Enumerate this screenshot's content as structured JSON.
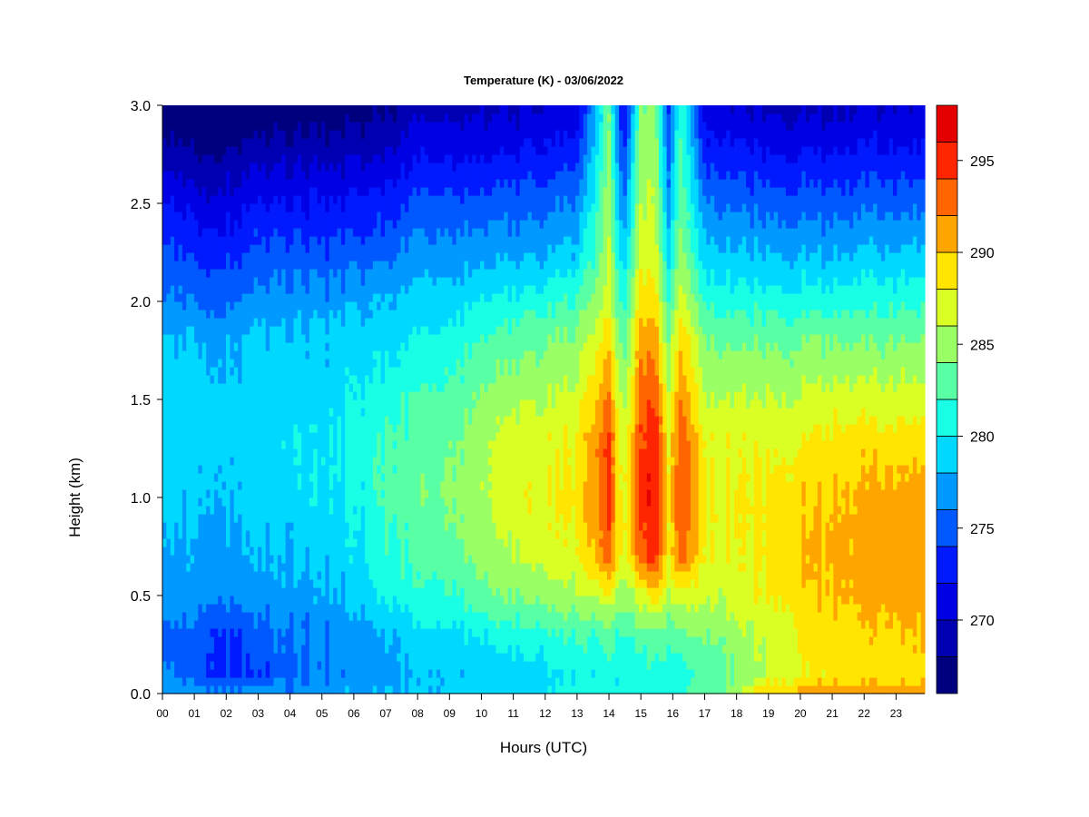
{
  "chart_data": {
    "type": "heatmap",
    "title": "Temperature (K) - 03/06/2022",
    "xlabel": "Hours (UTC)",
    "ylabel": "Height (km)",
    "x_ticks": [
      "00",
      "01",
      "02",
      "03",
      "04",
      "05",
      "06",
      "07",
      "08",
      "09",
      "10",
      "11",
      "12",
      "13",
      "14",
      "15",
      "16",
      "17",
      "18",
      "19",
      "20",
      "21",
      "22",
      "23"
    ],
    "y_ticks": [
      "0.0",
      "0.5",
      "1.0",
      "1.5",
      "2.0",
      "2.5",
      "3.0"
    ],
    "xlim": [
      0,
      23.9
    ],
    "ylim": [
      0,
      3.0
    ],
    "colorbar": {
      "ticks": [
        "270",
        "275",
        "280",
        "285",
        "290",
        "295"
      ],
      "range": [
        266,
        298
      ],
      "levels": [
        266,
        268,
        270,
        272,
        274,
        276,
        278,
        280,
        282,
        284,
        286,
        288,
        290,
        292,
        294,
        296,
        298
      ],
      "colors": [
        "#00007f",
        "#0000b2",
        "#0000e5",
        "#0019ff",
        "#0059ff",
        "#0099ff",
        "#00d9ff",
        "#19ffe5",
        "#59ffa5",
        "#99ff65",
        "#d9ff25",
        "#ffe500",
        "#ffa500",
        "#ff6500",
        "#ff2500",
        "#e50000",
        "#7f0000"
      ]
    },
    "height_km": [
      0.0,
      0.1,
      0.3,
      0.5,
      0.7,
      1.0,
      1.3,
      1.5,
      1.8,
      2.0,
      2.2,
      2.5,
      2.8,
      3.0
    ],
    "profiles": [
      {
        "hour": 0.0,
        "temperature_k": [
          277,
          276,
          275,
          277,
          277.5,
          278,
          278.5,
          279,
          278,
          276,
          275,
          272,
          268,
          266
        ]
      },
      {
        "hour": 1.0,
        "temperature_k": [
          277,
          275,
          275,
          277,
          277.5,
          278.5,
          279,
          279,
          278,
          276,
          274,
          271,
          267.5,
          266
        ]
      },
      {
        "hour": 2.0,
        "temperature_k": [
          277,
          274,
          274,
          277,
          277.5,
          278.5,
          279,
          279,
          278,
          276,
          274,
          271,
          268,
          266
        ]
      },
      {
        "hour": 3.0,
        "temperature_k": [
          277,
          274,
          275,
          277,
          278,
          279,
          279,
          279,
          278.5,
          276.5,
          275,
          272,
          268.5,
          266.5
        ]
      },
      {
        "hour": 4.0,
        "temperature_k": [
          277,
          275,
          276,
          277,
          278,
          279,
          279.5,
          279,
          278.5,
          277,
          275,
          272,
          268.5,
          266.5
        ]
      },
      {
        "hour": 5.0,
        "temperature_k": [
          277,
          276,
          276,
          277.5,
          278.5,
          279.5,
          279.5,
          279,
          278.5,
          277,
          275,
          272,
          268.5,
          266.5
        ]
      },
      {
        "hour": 6.0,
        "temperature_k": [
          277.5,
          277,
          277,
          278.5,
          279.5,
          280,
          280.5,
          280,
          279,
          277.5,
          275.5,
          272.5,
          269,
          267
        ]
      },
      {
        "hour": 7.0,
        "temperature_k": [
          278,
          277.5,
          278,
          280.5,
          281.5,
          282.5,
          282,
          281,
          279.5,
          278,
          276,
          273,
          269.5,
          267.5
        ]
      },
      {
        "hour": 8.0,
        "temperature_k": [
          278,
          278,
          279,
          281,
          282.5,
          283.5,
          283,
          282,
          280,
          278.5,
          277,
          274.5,
          271,
          269
        ]
      },
      {
        "hour": 9.0,
        "temperature_k": [
          278,
          278,
          279.5,
          281.5,
          283,
          284,
          283.5,
          282.5,
          280.5,
          279,
          277,
          274.5,
          271,
          269
        ]
      },
      {
        "hour": 10.0,
        "temperature_k": [
          278.5,
          278.5,
          280,
          283,
          284.5,
          285.5,
          285,
          284,
          282,
          280,
          277.5,
          274.5,
          271,
          269
        ]
      },
      {
        "hour": 11.0,
        "temperature_k": [
          279,
          279,
          281,
          284,
          286,
          287.5,
          287,
          285.5,
          283,
          280.5,
          278,
          275,
          271.5,
          269.5
        ]
      },
      {
        "hour": 12.0,
        "temperature_k": [
          280,
          279.5,
          281.5,
          285,
          287,
          288,
          287.5,
          286,
          284,
          281.5,
          278.5,
          275.5,
          272,
          270
        ]
      },
      {
        "hour": 13.0,
        "temperature_k": [
          281,
          280,
          282,
          285.5,
          287.5,
          288.5,
          288,
          286.5,
          284.5,
          282,
          279,
          276,
          272.5,
          270.5
        ]
      },
      {
        "hour": 14.0,
        "temperature_k": [
          281,
          280.5,
          282.5,
          287,
          293,
          294,
          294,
          292,
          289,
          287,
          286,
          285,
          284,
          283
        ]
      },
      {
        "hour": 14.45,
        "temperature_k": [
          281,
          280.5,
          282,
          285,
          287,
          287.5,
          286.5,
          285,
          283,
          281,
          279,
          276,
          273,
          271
        ]
      },
      {
        "hour": 15.0,
        "temperature_k": [
          281.5,
          281,
          283,
          287,
          293,
          295,
          294,
          293,
          291,
          289,
          287.5,
          286,
          285,
          284
        ]
      },
      {
        "hour": 15.45,
        "temperature_k": [
          281.5,
          281,
          283,
          289,
          295,
          296,
          295.5,
          294,
          291,
          289,
          287,
          286,
          285,
          284
        ]
      },
      {
        "hour": 15.85,
        "temperature_k": [
          281.5,
          281,
          283,
          286,
          288,
          288.5,
          288,
          286.5,
          284,
          282,
          280,
          277,
          275,
          274
        ]
      },
      {
        "hour": 16.25,
        "temperature_k": [
          281.5,
          281,
          283,
          287,
          293,
          294,
          293.5,
          292,
          289.5,
          287,
          285,
          283.5,
          282.5,
          281.5
        ]
      },
      {
        "hour": 17.0,
        "temperature_k": [
          283,
          282,
          284,
          286,
          287.5,
          288,
          287.5,
          286,
          284,
          281.5,
          279,
          276,
          272.5,
          270.5
        ]
      },
      {
        "hour": 18.0,
        "temperature_k": [
          285,
          284,
          285,
          287,
          287.5,
          288,
          287.5,
          286,
          283.5,
          281,
          278.5,
          275.5,
          272,
          270
        ]
      },
      {
        "hour": 19.0,
        "temperature_k": [
          290,
          286,
          286.5,
          288,
          288.5,
          288.5,
          287.5,
          286,
          283.5,
          281,
          278.5,
          275,
          271.5,
          269.5
        ]
      },
      {
        "hour": 20.0,
        "temperature_k": [
          291,
          288,
          288.5,
          289.5,
          290,
          289.5,
          288,
          286.5,
          284,
          281,
          278.5,
          275,
          271.5,
          269.5
        ]
      },
      {
        "hour": 21.0,
        "temperature_k": [
          292,
          288.5,
          289,
          290,
          290.5,
          290,
          288.5,
          287,
          284,
          281,
          278.5,
          275,
          271.5,
          269.5
        ]
      },
      {
        "hour": 22.0,
        "temperature_k": [
          291.5,
          289,
          289.5,
          290.5,
          291,
          290.5,
          289,
          287,
          284,
          281.5,
          279,
          275.5,
          272,
          270
        ]
      },
      {
        "hour": 23.0,
        "temperature_k": [
          291,
          289,
          290,
          291,
          291.5,
          291,
          289,
          287,
          284,
          281.5,
          279,
          275.5,
          272,
          270
        ]
      },
      {
        "hour": 23.9,
        "temperature_k": [
          291,
          289,
          290,
          291,
          291.5,
          291,
          289,
          287,
          284,
          281.5,
          279,
          275.5,
          272,
          270
        ]
      }
    ]
  }
}
